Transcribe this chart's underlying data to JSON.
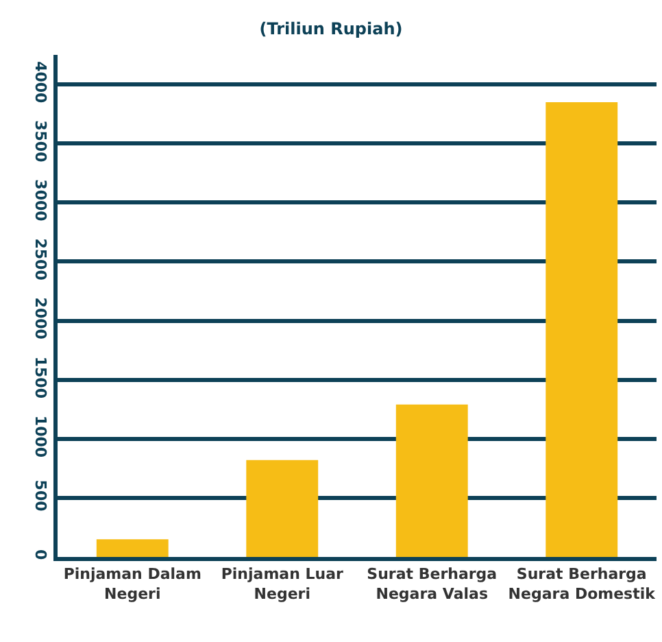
{
  "chart_data": {
    "type": "bar",
    "title": "(Triliun Rupiah)",
    "categories": [
      "Pinjaman Dalam Negeri",
      "Pinjaman Luar Negeri",
      "Surat Berharga Negara Valas",
      "Surat Berharga Negara Domestik"
    ],
    "series": [
      {
        "color": "#f6bd16",
        "values": [
          150,
          820,
          1290,
          3850
        ]
      }
    ],
    "ylim": [
      0,
      4250
    ],
    "yticks": [
      0,
      500,
      1000,
      1500,
      2000,
      2500,
      3000,
      3500,
      4000
    ],
    "grid": "y"
  }
}
